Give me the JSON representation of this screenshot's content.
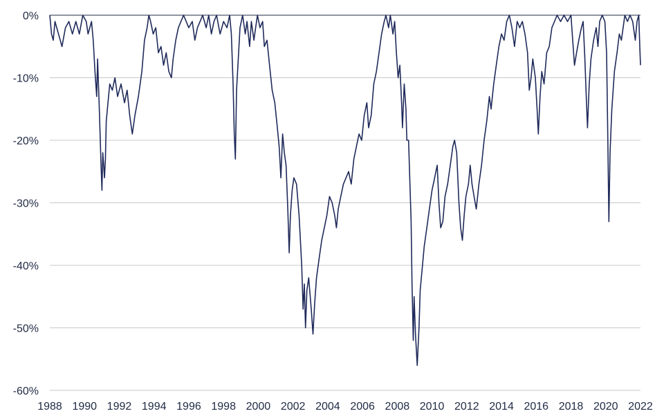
{
  "chart_data": {
    "type": "line",
    "title": "",
    "xlabel": "",
    "ylabel": "",
    "xlim": [
      1988,
      2022
    ],
    "ylim": [
      -60,
      0
    ],
    "y_ticks": [
      {
        "value": 0,
        "label": "0%"
      },
      {
        "value": -10,
        "label": "-10%"
      },
      {
        "value": -20,
        "label": "-20%"
      },
      {
        "value": -30,
        "label": "-30%"
      },
      {
        "value": -40,
        "label": "-40%"
      },
      {
        "value": -50,
        "label": "-50%"
      },
      {
        "value": -60,
        "label": "-60%"
      }
    ],
    "x_ticks": [
      {
        "value": 1988,
        "label": "1988"
      },
      {
        "value": 1990,
        "label": "1990"
      },
      {
        "value": 1992,
        "label": "1992"
      },
      {
        "value": 1994,
        "label": "1994"
      },
      {
        "value": 1996,
        "label": "1996"
      },
      {
        "value": 1998,
        "label": "1998"
      },
      {
        "value": 2000,
        "label": "2000"
      },
      {
        "value": 2002,
        "label": "2002"
      },
      {
        "value": 2004,
        "label": "2004"
      },
      {
        "value": 2006,
        "label": "2006"
      },
      {
        "value": 2008,
        "label": "2008"
      },
      {
        "value": 2010,
        "label": "2010"
      },
      {
        "value": 2012,
        "label": "2012"
      },
      {
        "value": 2014,
        "label": "2014"
      },
      {
        "value": 2016,
        "label": "2016"
      },
      {
        "value": 2018,
        "label": "2018"
      },
      {
        "value": 2020,
        "label": "2020"
      },
      {
        "value": 2022,
        "label": "2022"
      }
    ],
    "grid": true,
    "series_color": "#1f2a5a",
    "series": [
      {
        "points": [
          [
            1988.0,
            0
          ],
          [
            1988.1,
            -3
          ],
          [
            1988.2,
            -4
          ],
          [
            1988.3,
            -1
          ],
          [
            1988.5,
            -3
          ],
          [
            1988.7,
            -5
          ],
          [
            1988.9,
            -2
          ],
          [
            1989.1,
            -1
          ],
          [
            1989.3,
            -3
          ],
          [
            1989.5,
            -1
          ],
          [
            1989.7,
            -3
          ],
          [
            1989.9,
            0
          ],
          [
            1990.1,
            -1
          ],
          [
            1990.2,
            -3
          ],
          [
            1990.4,
            -1
          ],
          [
            1990.5,
            -4
          ],
          [
            1990.6,
            -9
          ],
          [
            1990.7,
            -13
          ],
          [
            1990.75,
            -7
          ],
          [
            1990.85,
            -15
          ],
          [
            1990.95,
            -24
          ],
          [
            1991.0,
            -28
          ],
          [
            1991.05,
            -22
          ],
          [
            1991.15,
            -26
          ],
          [
            1991.2,
            -23
          ],
          [
            1991.25,
            -17
          ],
          [
            1991.35,
            -14
          ],
          [
            1991.45,
            -11
          ],
          [
            1991.6,
            -12
          ],
          [
            1991.75,
            -10
          ],
          [
            1991.9,
            -13
          ],
          [
            1992.1,
            -11
          ],
          [
            1992.3,
            -14
          ],
          [
            1992.45,
            -12
          ],
          [
            1992.6,
            -16
          ],
          [
            1992.75,
            -19
          ],
          [
            1992.9,
            -16
          ],
          [
            1993.1,
            -13
          ],
          [
            1993.3,
            -9
          ],
          [
            1993.45,
            -4
          ],
          [
            1993.6,
            -2
          ],
          [
            1993.7,
            0
          ],
          [
            1993.8,
            -1
          ],
          [
            1993.95,
            -3
          ],
          [
            1994.1,
            -2
          ],
          [
            1994.25,
            -6
          ],
          [
            1994.4,
            -5
          ],
          [
            1994.55,
            -8
          ],
          [
            1994.7,
            -6
          ],
          [
            1994.85,
            -9
          ],
          [
            1995.0,
            -10
          ],
          [
            1995.1,
            -7
          ],
          [
            1995.25,
            -4
          ],
          [
            1995.4,
            -2
          ],
          [
            1995.55,
            -1
          ],
          [
            1995.7,
            0
          ],
          [
            1995.85,
            -1
          ],
          [
            1996.0,
            -2
          ],
          [
            1996.2,
            -1
          ],
          [
            1996.35,
            -4
          ],
          [
            1996.5,
            -2
          ],
          [
            1996.65,
            -1
          ],
          [
            1996.8,
            0
          ],
          [
            1997.0,
            -2
          ],
          [
            1997.15,
            0
          ],
          [
            1997.3,
            -3
          ],
          [
            1997.45,
            -1
          ],
          [
            1997.6,
            0
          ],
          [
            1997.8,
            -3
          ],
          [
            1998.0,
            -1
          ],
          [
            1998.2,
            -2
          ],
          [
            1998.35,
            0
          ],
          [
            1998.45,
            -3
          ],
          [
            1998.55,
            -11
          ],
          [
            1998.62,
            -19
          ],
          [
            1998.68,
            -23
          ],
          [
            1998.75,
            -12
          ],
          [
            1998.85,
            -7
          ],
          [
            1998.95,
            -2
          ],
          [
            1999.1,
            0
          ],
          [
            1999.25,
            -3
          ],
          [
            1999.35,
            -1
          ],
          [
            1999.5,
            -5
          ],
          [
            1999.6,
            -1
          ],
          [
            1999.75,
            -4
          ],
          [
            1999.85,
            -2
          ],
          [
            1999.95,
            0
          ],
          [
            2000.1,
            -2
          ],
          [
            2000.25,
            -1
          ],
          [
            2000.35,
            -5
          ],
          [
            2000.5,
            -4
          ],
          [
            2000.65,
            -8
          ],
          [
            2000.8,
            -12
          ],
          [
            2000.95,
            -14
          ],
          [
            2001.1,
            -18
          ],
          [
            2001.2,
            -21
          ],
          [
            2001.3,
            -26
          ],
          [
            2001.4,
            -19
          ],
          [
            2001.5,
            -22
          ],
          [
            2001.6,
            -24
          ],
          [
            2001.7,
            -31
          ],
          [
            2001.78,
            -38
          ],
          [
            2001.85,
            -32
          ],
          [
            2001.95,
            -28
          ],
          [
            2002.05,
            -26
          ],
          [
            2002.2,
            -27
          ],
          [
            2002.35,
            -32
          ],
          [
            2002.5,
            -40
          ],
          [
            2002.58,
            -47
          ],
          [
            2002.65,
            -43
          ],
          [
            2002.72,
            -50
          ],
          [
            2002.8,
            -44
          ],
          [
            2002.9,
            -42
          ],
          [
            2003.05,
            -47
          ],
          [
            2003.15,
            -51
          ],
          [
            2003.25,
            -46
          ],
          [
            2003.35,
            -42
          ],
          [
            2003.5,
            -39
          ],
          [
            2003.65,
            -36
          ],
          [
            2003.8,
            -34
          ],
          [
            2003.95,
            -32
          ],
          [
            2004.1,
            -29
          ],
          [
            2004.25,
            -30
          ],
          [
            2004.4,
            -32
          ],
          [
            2004.5,
            -34
          ],
          [
            2004.6,
            -31
          ],
          [
            2004.75,
            -29
          ],
          [
            2004.9,
            -27
          ],
          [
            2005.05,
            -26
          ],
          [
            2005.2,
            -25
          ],
          [
            2005.35,
            -27
          ],
          [
            2005.5,
            -23
          ],
          [
            2005.65,
            -21
          ],
          [
            2005.8,
            -19
          ],
          [
            2005.95,
            -20
          ],
          [
            2006.1,
            -16
          ],
          [
            2006.25,
            -14
          ],
          [
            2006.35,
            -18
          ],
          [
            2006.5,
            -16
          ],
          [
            2006.65,
            -11
          ],
          [
            2006.8,
            -9
          ],
          [
            2006.95,
            -6
          ],
          [
            2007.1,
            -3
          ],
          [
            2007.25,
            -1
          ],
          [
            2007.35,
            0
          ],
          [
            2007.5,
            -2
          ],
          [
            2007.6,
            0
          ],
          [
            2007.75,
            -3
          ],
          [
            2007.85,
            -1
          ],
          [
            2007.95,
            -6
          ],
          [
            2008.05,
            -10
          ],
          [
            2008.15,
            -8
          ],
          [
            2008.25,
            -14
          ],
          [
            2008.3,
            -18
          ],
          [
            2008.4,
            -11
          ],
          [
            2008.5,
            -15
          ],
          [
            2008.55,
            -20
          ],
          [
            2008.65,
            -20
          ],
          [
            2008.72,
            -26
          ],
          [
            2008.8,
            -33
          ],
          [
            2008.85,
            -43
          ],
          [
            2008.92,
            -52
          ],
          [
            2008.97,
            -45
          ],
          [
            2009.05,
            -51
          ],
          [
            2009.15,
            -56
          ],
          [
            2009.25,
            -50
          ],
          [
            2009.32,
            -44
          ],
          [
            2009.42,
            -41
          ],
          [
            2009.55,
            -37
          ],
          [
            2009.7,
            -34
          ],
          [
            2009.85,
            -31
          ],
          [
            2010.0,
            -28
          ],
          [
            2010.15,
            -26
          ],
          [
            2010.3,
            -24
          ],
          [
            2010.4,
            -30
          ],
          [
            2010.5,
            -34
          ],
          [
            2010.62,
            -33
          ],
          [
            2010.75,
            -29
          ],
          [
            2010.9,
            -27
          ],
          [
            2011.05,
            -24
          ],
          [
            2011.2,
            -21
          ],
          [
            2011.3,
            -20
          ],
          [
            2011.42,
            -22
          ],
          [
            2011.55,
            -30
          ],
          [
            2011.65,
            -34
          ],
          [
            2011.75,
            -36
          ],
          [
            2011.85,
            -32
          ],
          [
            2011.95,
            -29
          ],
          [
            2012.1,
            -27
          ],
          [
            2012.2,
            -24
          ],
          [
            2012.3,
            -27
          ],
          [
            2012.42,
            -29
          ],
          [
            2012.55,
            -31
          ],
          [
            2012.7,
            -27
          ],
          [
            2012.85,
            -24
          ],
          [
            2013.0,
            -20
          ],
          [
            2013.15,
            -17
          ],
          [
            2013.3,
            -13
          ],
          [
            2013.4,
            -15
          ],
          [
            2013.55,
            -11
          ],
          [
            2013.7,
            -8
          ],
          [
            2013.85,
            -5
          ],
          [
            2014.0,
            -3
          ],
          [
            2014.15,
            -4
          ],
          [
            2014.3,
            -1
          ],
          [
            2014.45,
            0
          ],
          [
            2014.6,
            -2
          ],
          [
            2014.75,
            -5
          ],
          [
            2014.9,
            -1
          ],
          [
            2015.05,
            -2
          ],
          [
            2015.2,
            -1
          ],
          [
            2015.35,
            -3
          ],
          [
            2015.5,
            -6
          ],
          [
            2015.6,
            -12
          ],
          [
            2015.7,
            -10
          ],
          [
            2015.8,
            -7
          ],
          [
            2015.95,
            -10
          ],
          [
            2016.05,
            -15
          ],
          [
            2016.12,
            -19
          ],
          [
            2016.22,
            -13
          ],
          [
            2016.32,
            -9
          ],
          [
            2016.45,
            -11
          ],
          [
            2016.6,
            -6
          ],
          [
            2016.75,
            -5
          ],
          [
            2016.9,
            -2
          ],
          [
            2017.05,
            -1
          ],
          [
            2017.2,
            0
          ],
          [
            2017.4,
            -1
          ],
          [
            2017.6,
            0
          ],
          [
            2017.8,
            -1
          ],
          [
            2018.0,
            0
          ],
          [
            2018.1,
            -4
          ],
          [
            2018.2,
            -8
          ],
          [
            2018.32,
            -6
          ],
          [
            2018.45,
            -4
          ],
          [
            2018.6,
            -2
          ],
          [
            2018.7,
            -1
          ],
          [
            2018.8,
            -7
          ],
          [
            2018.88,
            -13
          ],
          [
            2018.95,
            -18
          ],
          [
            2019.05,
            -11
          ],
          [
            2019.15,
            -7
          ],
          [
            2019.3,
            -4
          ],
          [
            2019.45,
            -2
          ],
          [
            2019.55,
            -5
          ],
          [
            2019.65,
            -1
          ],
          [
            2019.8,
            0
          ],
          [
            2019.95,
            -1
          ],
          [
            2020.05,
            -6
          ],
          [
            2020.12,
            -20
          ],
          [
            2020.18,
            -33
          ],
          [
            2020.25,
            -22
          ],
          [
            2020.35,
            -15
          ],
          [
            2020.5,
            -9
          ],
          [
            2020.65,
            -6
          ],
          [
            2020.78,
            -3
          ],
          [
            2020.9,
            -4
          ],
          [
            2021.0,
            -2
          ],
          [
            2021.1,
            0
          ],
          [
            2021.25,
            -1
          ],
          [
            2021.4,
            0
          ],
          [
            2021.55,
            -1
          ],
          [
            2021.7,
            -4
          ],
          [
            2021.8,
            -1
          ],
          [
            2021.9,
            0
          ],
          [
            2021.96,
            -5
          ],
          [
            2022.0,
            -8
          ]
        ]
      }
    ]
  }
}
